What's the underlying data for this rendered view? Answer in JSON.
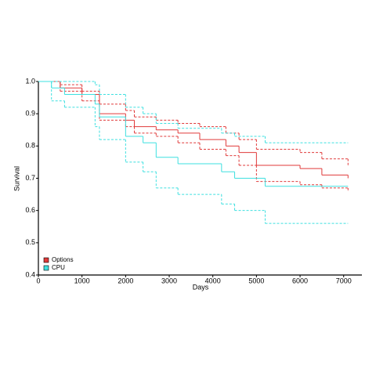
{
  "chart_data": {
    "type": "step",
    "x_label": "Days",
    "y_label": "Survival",
    "xlim": [
      0,
      7400
    ],
    "ylim": [
      0.4,
      1.0
    ],
    "xticks": [
      0,
      1000,
      2000,
      3000,
      4000,
      5000,
      6000,
      7000
    ],
    "yticks": [
      0.4,
      0.5,
      0.6,
      0.7,
      0.8,
      0.9,
      {
        "value": 1.0,
        "label": "1.0"
      }
    ],
    "legend": "bottom-left",
    "series": [
      {
        "name": "Options",
        "color": "#e03a3a",
        "x": [
          0,
          500,
          1000,
          1400,
          2000,
          2200,
          2700,
          3200,
          3700,
          4300,
          4600,
          5000,
          6000,
          6500,
          7100
        ],
        "values": [
          1.0,
          0.98,
          0.96,
          0.9,
          0.88,
          0.86,
          0.85,
          0.84,
          0.82,
          0.8,
          0.78,
          0.74,
          0.73,
          0.71,
          0.7
        ],
        "upper": [
          1.0,
          0.99,
          0.97,
          0.93,
          0.91,
          0.89,
          0.88,
          0.87,
          0.86,
          0.84,
          0.82,
          0.79,
          0.78,
          0.76,
          0.74
        ],
        "lower": [
          1.0,
          0.97,
          0.94,
          0.88,
          0.86,
          0.84,
          0.83,
          0.81,
          0.79,
          0.77,
          0.74,
          0.69,
          0.68,
          0.67,
          0.66
        ]
      },
      {
        "name": "CPU",
        "color": "#3ee0e0",
        "x": [
          0,
          300,
          600,
          1300,
          1400,
          2000,
          2400,
          2700,
          3200,
          4200,
          4500,
          5200,
          7100
        ],
        "values": [
          1.0,
          0.98,
          0.96,
          0.93,
          0.89,
          0.83,
          0.81,
          0.765,
          0.745,
          0.72,
          0.7,
          0.675,
          0.675
        ],
        "upper": [
          1.0,
          1.0,
          1.0,
          0.99,
          0.96,
          0.92,
          0.9,
          0.87,
          0.855,
          0.84,
          0.83,
          0.81,
          0.81
        ],
        "lower": [
          1.0,
          0.94,
          0.92,
          0.86,
          0.82,
          0.75,
          0.72,
          0.67,
          0.65,
          0.62,
          0.6,
          0.56,
          0.56
        ]
      }
    ]
  }
}
